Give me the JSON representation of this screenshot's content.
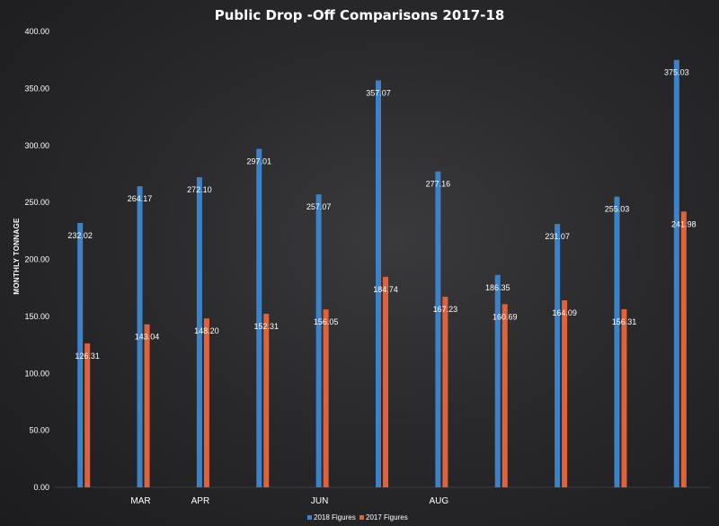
{
  "chart_data": {
    "type": "bar",
    "title": "Public Drop -Off  Comparisons 2017-18",
    "ylabel": "MONTHLY TONNAGE",
    "xlabel": "",
    "ylim": [
      0,
      400
    ],
    "yticks": [
      "0.00",
      "50.00",
      "100.00",
      "150.00",
      "200.00",
      "250.00",
      "300.00",
      "350.00",
      "400.00"
    ],
    "categories": [
      "",
      "MAR",
      "APR",
      "",
      "JUN",
      "",
      "AUG",
      "",
      "",
      "",
      ""
    ],
    "series": [
      {
        "name": "2018 Figures",
        "color": "#3b82c8",
        "values": [
          232.02,
          264.17,
          272.1,
          297.01,
          257.07,
          357.07,
          277.16,
          186.35,
          231.07,
          255.03,
          375.03
        ],
        "labels": [
          "232.02",
          "264.17",
          "272.10",
          "297.01",
          "257.07",
          "357.07",
          "277.16",
          "186.35",
          "231.07",
          "255.03",
          "375.03"
        ]
      },
      {
        "name": "2017 Figures",
        "color": "#e0623a",
        "values": [
          126.31,
          143.04,
          148.2,
          152.31,
          156.05,
          184.74,
          167.23,
          160.69,
          164.09,
          156.31,
          241.98
        ],
        "labels": [
          "126.31",
          "143.04",
          "148.20",
          "152.31",
          "156.05",
          "184.74",
          "167.23",
          "160.69",
          "164.09",
          "156.31",
          "241.98"
        ]
      }
    ],
    "grid": false,
    "legend_position": "bottom"
  }
}
